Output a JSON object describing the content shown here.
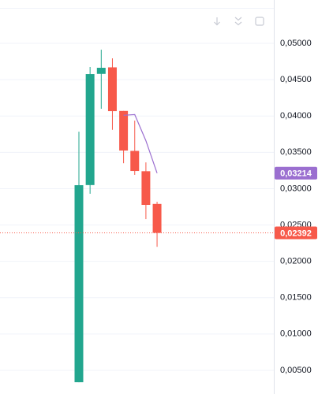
{
  "chart_data": {
    "type": "candlestick",
    "categories": [
      null,
      null,
      null,
      null,
      null,
      null,
      null,
      null
    ],
    "open": [
      0.00336,
      0.0305,
      0.0458,
      0.0467,
      0.0407,
      0.0352,
      0.0324,
      0.0279
    ],
    "high": [
      0.03785,
      0.04675,
      0.04913,
      0.04794,
      0.0407,
      0.03937,
      0.03362,
      0.0282
    ],
    "low": [
      0.00336,
      0.0293,
      0.041,
      0.0381,
      0.0335,
      0.0319,
      0.02581,
      0.022
    ],
    "close": [
      0.03048,
      0.04577,
      0.04664,
      0.04067,
      0.03525,
      0.03243,
      0.02777,
      0.02392
    ],
    "up_color": "#22a68e",
    "down_color": "#f7594a",
    "line": {
      "color": "#9b6fd0",
      "values": [
        null,
        null,
        null,
        null,
        0.0401,
        0.0402,
        0.0366,
        0.03214
      ]
    },
    "line_label": {
      "value": 0.03214,
      "label": "0,03214"
    },
    "price_line": {
      "value": 0.02392,
      "label": "0,02392"
    },
    "ylim": [
      0.00174,
      0.05597
    ],
    "yticks": [
      {
        "value": 0.005,
        "label": "0,00500"
      },
      {
        "value": 0.01,
        "label": "0,01000"
      },
      {
        "value": 0.015,
        "label": "0,01500"
      },
      {
        "value": 0.02,
        "label": "0,02000"
      },
      {
        "value": 0.025,
        "label": "0,02500"
      },
      {
        "value": 0.03,
        "label": "0,03000"
      },
      {
        "value": 0.035,
        "label": "0,03500"
      },
      {
        "value": 0.04,
        "label": "0,04000"
      },
      {
        "value": 0.045,
        "label": "0,04500"
      },
      {
        "value": 0.05,
        "label": "0,05000"
      }
    ],
    "grid": true
  }
}
